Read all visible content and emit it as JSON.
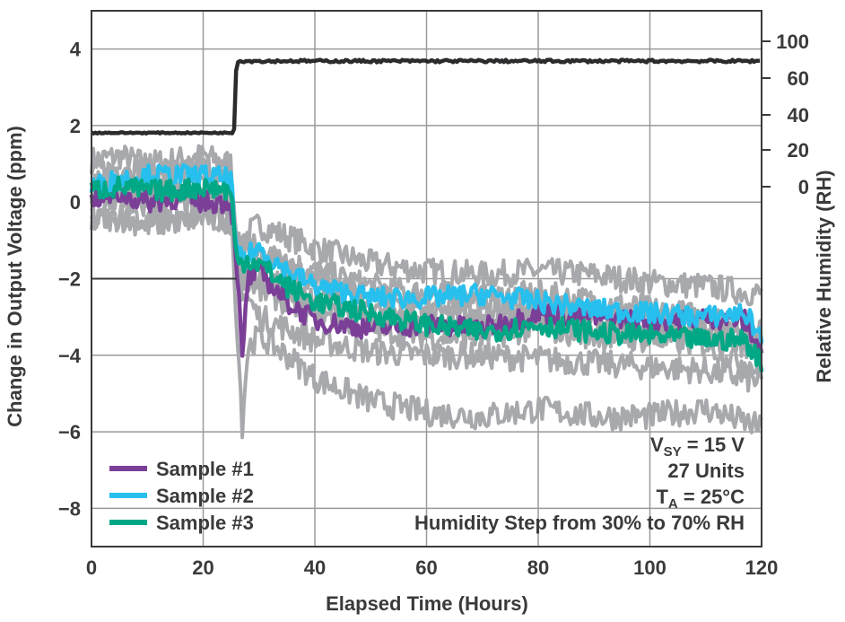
{
  "chart_data": {
    "type": "line",
    "xlabel": "Elapsed Time (Hours)",
    "ylabel": "Change in Output Voltage (ppm)",
    "ylabel_right": "Relative Humidity (RH)",
    "xlim": [
      0,
      120
    ],
    "ylim": [
      -9,
      5
    ],
    "xticks": [
      "0",
      "20",
      "40",
      "60",
      "80",
      "100",
      "120"
    ],
    "yticks": [
      "4",
      "2",
      "0",
      "−2",
      "−4",
      "−6",
      "−8"
    ],
    "rh_ticks": [
      "100",
      "60",
      "40",
      "20",
      "0"
    ],
    "grid": true,
    "legend_position": "bottom-left",
    "annotations": {
      "vsy_main": "V",
      "vsy_sub": "SY",
      "vsy_value": " = 15 V",
      "units": "27 Units",
      "ta_main": "T",
      "ta_sub": "A",
      "ta_value": " = 25°C",
      "step": "Humidity Step from 30% to 70% RH"
    },
    "colors": {
      "sample1": "#7b3f98",
      "sample2": "#27c0ee",
      "sample3": "#00a886",
      "others": "#a7a9ac",
      "humidity": "#2b2b2e",
      "grid": "#9a9a9a",
      "frame": "#3a3a3a"
    },
    "humidity_series": {
      "name": "Relative Humidity",
      "x": [
        0,
        25.5,
        26,
        30,
        40,
        60,
        80,
        100,
        120
      ],
      "y": [
        30,
        30,
        70,
        70,
        70,
        70,
        70,
        70,
        70
      ]
    },
    "series": [
      {
        "name": "Sample #1",
        "x": [
          0,
          5,
          10,
          15,
          20,
          25,
          26,
          27,
          28,
          30,
          35,
          40,
          50,
          60,
          70,
          80,
          90,
          100,
          110,
          117,
          120
        ],
        "y": [
          0.1,
          0.2,
          0.0,
          0.1,
          0.0,
          0.0,
          -1.5,
          -4.2,
          -2.0,
          -1.8,
          -2.6,
          -3.1,
          -3.3,
          -3.2,
          -3.3,
          -2.9,
          -3.0,
          -3.1,
          -3.0,
          -3.1,
          -3.9
        ]
      },
      {
        "name": "Sample #2",
        "x": [
          0,
          5,
          10,
          15,
          20,
          25,
          26,
          28,
          30,
          35,
          40,
          50,
          60,
          70,
          80,
          90,
          100,
          110,
          117,
          120
        ],
        "y": [
          0.4,
          0.6,
          0.7,
          0.7,
          0.7,
          0.6,
          -1.5,
          -1.4,
          -1.2,
          -1.8,
          -2.2,
          -2.5,
          -2.5,
          -2.4,
          -2.6,
          -2.8,
          -2.9,
          -3.0,
          -2.9,
          -3.5
        ]
      },
      {
        "name": "Sample #3",
        "x": [
          0,
          5,
          10,
          15,
          20,
          25,
          26,
          28,
          30,
          35,
          40,
          50,
          60,
          70,
          80,
          90,
          100,
          110,
          117,
          120
        ],
        "y": [
          0.3,
          0.4,
          0.3,
          0.3,
          0.4,
          0.3,
          -1.6,
          -1.5,
          -1.6,
          -2.2,
          -2.6,
          -2.9,
          -3.2,
          -3.4,
          -3.2,
          -3.4,
          -3.5,
          -3.6,
          -3.6,
          -4.2
        ]
      }
    ],
    "other_units": [
      {
        "x": [
          0,
          5,
          10,
          15,
          20,
          25,
          26,
          27,
          28,
          30,
          40,
          50,
          60,
          70,
          80,
          90,
          100,
          110,
          120
        ],
        "y": [
          1.1,
          1.2,
          1.0,
          1.1,
          1.2,
          1.0,
          -1.0,
          -1.4,
          -0.8,
          -0.6,
          -1.2,
          -1.6,
          -1.8,
          -1.9,
          -1.8,
          -1.9,
          -2.1,
          -2.2,
          -2.4
        ]
      },
      {
        "x": [
          0,
          5,
          10,
          15,
          20,
          25,
          26,
          28,
          30,
          40,
          50,
          60,
          70,
          80,
          90,
          100,
          110,
          120
        ],
        "y": [
          0.8,
          0.9,
          0.9,
          0.8,
          0.9,
          0.8,
          -1.2,
          -1.0,
          -1.3,
          -1.8,
          -2.2,
          -2.4,
          -2.5,
          -2.4,
          -2.6,
          -2.8,
          -3.0,
          -3.2
        ]
      },
      {
        "x": [
          0,
          5,
          10,
          15,
          20,
          25,
          26,
          28,
          30,
          40,
          50,
          60,
          70,
          80,
          90,
          100,
          110,
          120
        ],
        "y": [
          -0.4,
          -0.3,
          -0.5,
          -0.4,
          -0.3,
          -0.5,
          -2.0,
          -2.5,
          -3.0,
          -3.6,
          -3.9,
          -4.0,
          -4.0,
          -4.1,
          -4.2,
          -4.3,
          -4.4,
          -4.7
        ]
      },
      {
        "x": [
          0,
          5,
          10,
          15,
          20,
          25,
          26,
          27,
          28,
          30,
          35,
          40,
          50,
          60,
          70,
          80,
          90,
          100,
          110,
          120
        ],
        "y": [
          -0.5,
          -0.4,
          -0.6,
          -0.5,
          -0.4,
          -0.5,
          -3.0,
          -5.8,
          -3.8,
          -3.5,
          -4.0,
          -4.6,
          -5.2,
          -5.5,
          -5.6,
          -5.4,
          -5.6,
          -5.6,
          -5.4,
          -5.9
        ]
      },
      {
        "x": [
          0,
          5,
          10,
          15,
          20,
          25,
          26,
          28,
          30,
          40,
          50,
          60,
          70,
          80,
          90,
          100,
          110,
          120
        ],
        "y": [
          0.0,
          0.1,
          -0.1,
          0.0,
          0.1,
          0.0,
          -1.8,
          -2.0,
          -2.3,
          -2.9,
          -3.3,
          -3.5,
          -3.5,
          -3.3,
          -3.5,
          -3.6,
          -3.7,
          -4.4
        ]
      },
      {
        "x": [
          0,
          5,
          10,
          15,
          20,
          25,
          26,
          28,
          30,
          40,
          50,
          60,
          70,
          80,
          90,
          100,
          110,
          120
        ],
        "y": [
          0.5,
          0.6,
          0.4,
          0.5,
          0.6,
          0.5,
          -1.3,
          -1.1,
          -1.4,
          -2.0,
          -2.4,
          -2.7,
          -2.8,
          -2.7,
          -2.9,
          -3.1,
          -3.3,
          -3.6
        ]
      },
      {
        "x": [
          0,
          5,
          10,
          15,
          20,
          25,
          26,
          28,
          30,
          40,
          50,
          60,
          70,
          80,
          90,
          100,
          110,
          120
        ],
        "y": [
          0.2,
          0.3,
          0.2,
          0.2,
          0.3,
          0.2,
          -1.6,
          -1.8,
          -2.0,
          -2.5,
          -2.9,
          -3.0,
          -3.1,
          -3.0,
          -3.2,
          -3.3,
          -3.5,
          -3.8
        ]
      }
    ]
  }
}
